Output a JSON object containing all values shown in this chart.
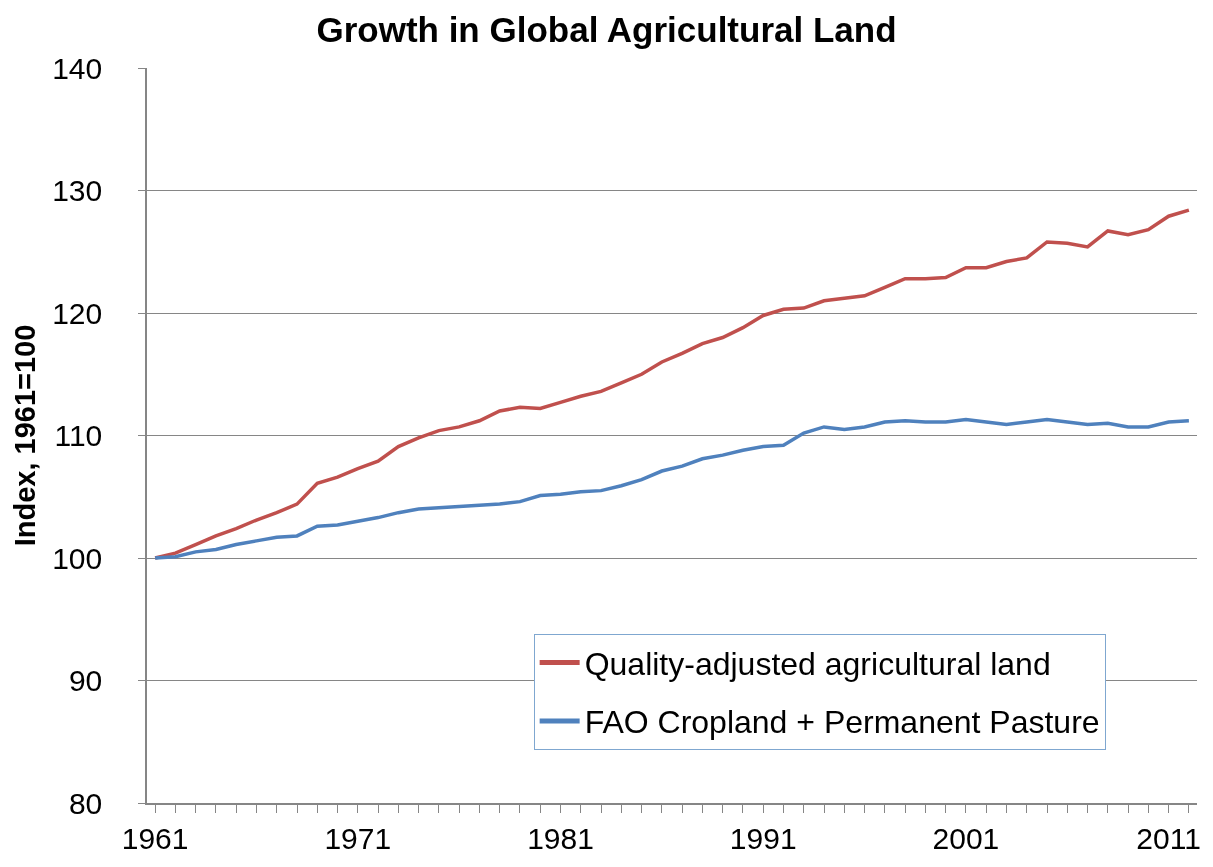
{
  "chart_data": {
    "type": "line",
    "title": "Growth in Global Agricultural Land",
    "ylabel": "Index, 1961=100",
    "categories": [
      "1961",
      null,
      null,
      null,
      null,
      null,
      null,
      null,
      null,
      null,
      "1971",
      null,
      null,
      null,
      null,
      null,
      null,
      null,
      null,
      null,
      "1981",
      null,
      null,
      null,
      null,
      null,
      null,
      null,
      null,
      null,
      "1991",
      null,
      null,
      null,
      null,
      null,
      null,
      null,
      null,
      null,
      "2001",
      null,
      null,
      null,
      null,
      null,
      null,
      null,
      null,
      null,
      "2011",
      null
    ],
    "series": [
      {
        "name": "Quality-adjusted agricultural land",
        "color": "#c0504d",
        "values": [
          100,
          100.4,
          101.1,
          101.8,
          102.4,
          103.1,
          103.7,
          104.4,
          106.1,
          106.6,
          107.3,
          107.9,
          109.1,
          109.8,
          110.4,
          110.7,
          111.2,
          112.0,
          112.3,
          112.2,
          112.7,
          113.2,
          113.6,
          114.3,
          115.0,
          116.0,
          116.7,
          117.5,
          118.0,
          118.8,
          119.8,
          120.3,
          120.4,
          121.0,
          121.2,
          121.4,
          122.1,
          122.8,
          122.8,
          122.9,
          123.7,
          123.7,
          124.2,
          124.5,
          125.8,
          125.7,
          125.4,
          126.7,
          126.4,
          126.8,
          127.9,
          128.4
        ]
      },
      {
        "name": "FAO Cropland + Permanent Pasture",
        "color": "#4f81bd",
        "values": [
          100,
          100.1,
          100.5,
          100.7,
          101.1,
          101.4,
          101.7,
          101.8,
          102.6,
          102.7,
          103.0,
          103.3,
          103.7,
          104.0,
          104.1,
          104.2,
          104.3,
          104.4,
          104.6,
          105.1,
          105.2,
          105.4,
          105.5,
          105.9,
          106.4,
          107.1,
          107.5,
          108.1,
          108.4,
          108.8,
          109.1,
          109.2,
          110.2,
          110.7,
          110.5,
          110.7,
          111.1,
          111.2,
          111.1,
          111.1,
          111.3,
          111.1,
          110.9,
          111.1,
          111.3,
          111.1,
          110.9,
          111.0,
          110.7,
          110.7,
          111.1,
          111.2
        ]
      }
    ],
    "ylim": [
      80,
      140
    ],
    "yticks": [
      80,
      90,
      100,
      110,
      120,
      130,
      140
    ],
    "grid": "y",
    "legend": "bottom right",
    "line_style": "solid"
  }
}
